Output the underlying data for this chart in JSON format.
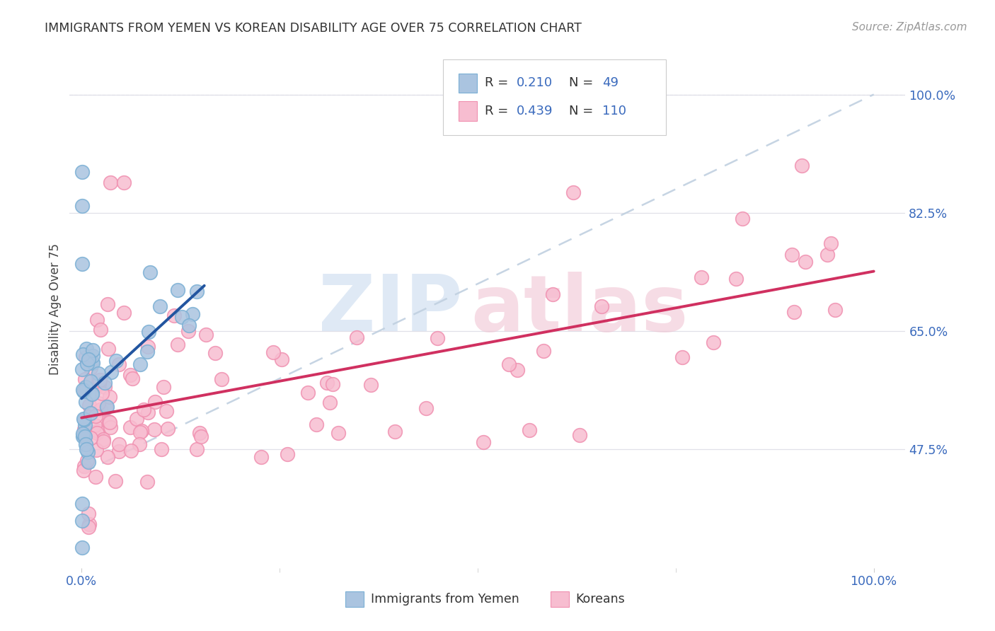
{
  "title": "IMMIGRANTS FROM YEMEN VS KOREAN DISABILITY AGE OVER 75 CORRELATION CHART",
  "source": "Source: ZipAtlas.com",
  "ylabel": "Disability Age Over 75",
  "legend_r1": "R = 0.210",
  "legend_n1": "N =  49",
  "legend_r2": "R = 0.439",
  "legend_n2": "N = 110",
  "blue_fill": "#aac4e0",
  "blue_edge": "#7aafd4",
  "pink_fill": "#f7bdd0",
  "pink_edge": "#f090b0",
  "blue_line_color": "#2255a0",
  "pink_line_color": "#d03060",
  "dashed_line_color": "#c0d0e0",
  "tick_label_color": "#3a6abd",
  "title_color": "#333333",
  "source_color": "#999999",
  "background_color": "#ffffff",
  "grid_color": "#e0e0e8",
  "ytick_labels": [
    "47.5%",
    "65.0%",
    "82.5%",
    "100.0%"
  ],
  "ytick_values": [
    0.475,
    0.65,
    0.825,
    1.0
  ],
  "xtick_labels": [
    "0.0%",
    "100.0%"
  ],
  "xtick_values": [
    0.0,
    1.0
  ],
  "xlim": [
    -0.015,
    1.04
  ],
  "ylim": [
    0.3,
    1.065
  ],
  "watermark_zip_color": "#c5d8ee",
  "watermark_atlas_color": "#f0c0d0"
}
